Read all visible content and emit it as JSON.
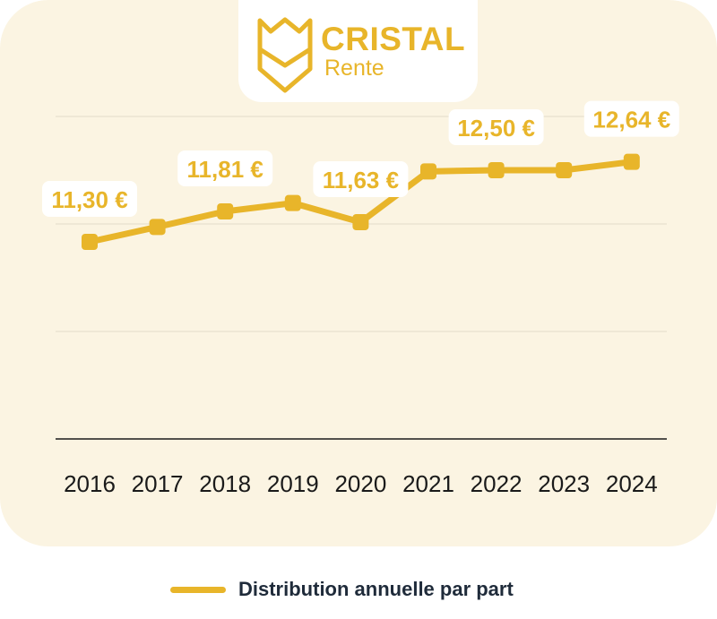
{
  "logo": {
    "title": "CRISTAL",
    "subtitle": "Rente",
    "icon": "shield-logo-icon"
  },
  "colors": {
    "accent": "#e8b52a",
    "card_bg": "#fbf4e2",
    "axis": "#1a1a1a",
    "grid": "#ebe4d2"
  },
  "chart_data": {
    "type": "line",
    "categories": [
      "2016",
      "2017",
      "2018",
      "2019",
      "2020",
      "2021",
      "2022",
      "2023",
      "2024"
    ],
    "series": [
      {
        "name": "Distribution annuelle par part",
        "values": [
          11.3,
          11.55,
          11.81,
          11.95,
          11.63,
          12.48,
          12.5,
          12.5,
          12.64
        ]
      }
    ],
    "data_labels": [
      {
        "index": 0,
        "text": "11,30 €"
      },
      {
        "index": 2,
        "text": "11,81 €"
      },
      {
        "index": 4,
        "text": "11,63 €"
      },
      {
        "index": 6,
        "text": "12,50 €"
      },
      {
        "index": 8,
        "text": "12,64 €"
      }
    ],
    "ylim": [
      8.0,
      13.4
    ],
    "gridlines": [
      9.8,
      11.6,
      13.4
    ],
    "title": "",
    "xlabel": "",
    "ylabel": "",
    "legend_position": "bottom-center"
  },
  "legend": {
    "label": "Distribution annuelle par part"
  }
}
